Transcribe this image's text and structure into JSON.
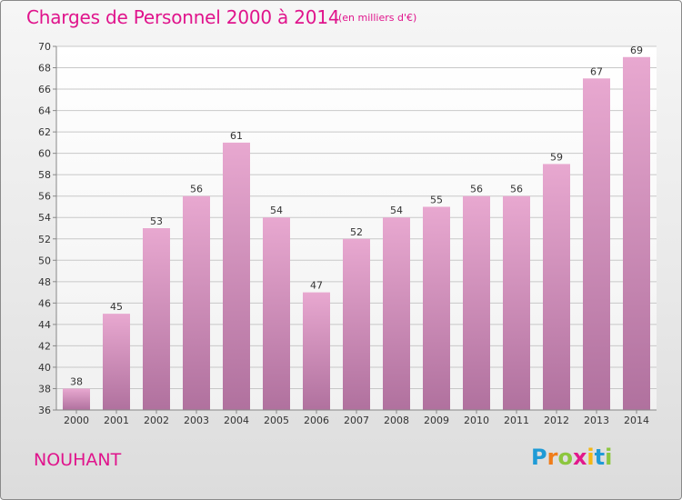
{
  "title": "Charges de Personnel 2000 à 2014",
  "unit": "(en milliers d'€)",
  "commune": "NOUHANT",
  "logo": {
    "text": "Proxiti"
  },
  "colors": {
    "accent": "#e0148c",
    "bar_top": "#e8a8d0",
    "bar_bottom": "#b0719e",
    "grid": "#c8c8c8"
  },
  "chart_data": {
    "type": "bar",
    "categories": [
      "2000",
      "2001",
      "2002",
      "2003",
      "2004",
      "2005",
      "2006",
      "2007",
      "2008",
      "2009",
      "2010",
      "2011",
      "2012",
      "2013",
      "2014"
    ],
    "values": [
      38,
      45,
      53,
      56,
      61,
      54,
      47,
      52,
      54,
      55,
      56,
      56,
      59,
      67,
      69
    ],
    "ylim": [
      36,
      70
    ],
    "yticks": [
      36,
      38,
      40,
      42,
      44,
      46,
      48,
      50,
      52,
      54,
      56,
      58,
      60,
      62,
      64,
      66,
      68,
      70
    ],
    "grid": true,
    "data_labels": true
  }
}
